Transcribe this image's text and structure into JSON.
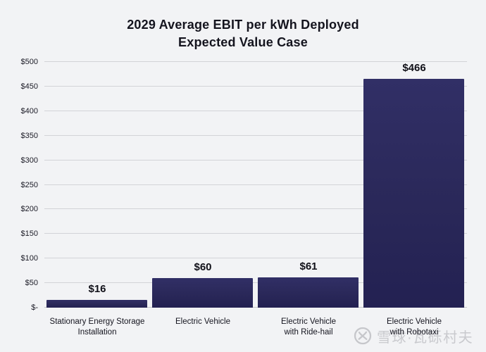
{
  "title": {
    "line1": "2029 Average EBIT per kWh Deployed",
    "line2": "Expected Value Case"
  },
  "chart_data": {
    "type": "bar",
    "title": "2029 Average EBIT per kWh Deployed",
    "subtitle": "Expected Value Case",
    "categories": [
      [
        "Stationary Energy Storage",
        "Installation"
      ],
      [
        "Electric Vehicle"
      ],
      [
        "Electric Vehicle",
        "with Ride-hail"
      ],
      [
        "Electric Vehicle",
        "with Robotaxi"
      ]
    ],
    "values": [
      16,
      60,
      61,
      466
    ],
    "value_labels": [
      "$16",
      "$60",
      "$61",
      "$466"
    ],
    "xlabel": "",
    "ylabel": "",
    "ylim": [
      0,
      500
    ],
    "ytick_interval": 50,
    "ytick_labels": [
      "$-",
      "$50",
      "$100",
      "$150",
      "$200",
      "$250",
      "$300",
      "$350",
      "$400",
      "$450",
      "$500"
    ],
    "grid": true,
    "legend_position": "none",
    "bar_color": "#2a2859"
  },
  "watermark": {
    "icon": "xueqiu-logo-icon",
    "text": "雪球·瓦砾村夫"
  },
  "colors": {
    "background": "#f2f3f5",
    "bar_top": "#312f66",
    "bar_bottom": "#232152",
    "gridline": "#d2d3d7",
    "text": "#14141e",
    "watermark": "#c9cace"
  }
}
